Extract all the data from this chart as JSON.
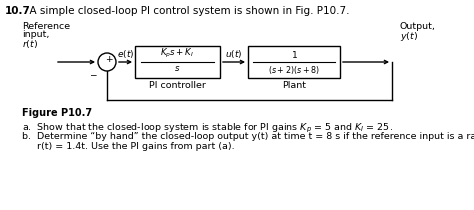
{
  "title_num": "10.7",
  "title_text": "  A simple closed-loop PI control system is shown in Fig. P10.7.",
  "fig_label": "Figure P10.7",
  "part_a": "a.  Show that the closed-loop system is stable for PI gains $K_p$ = 5 and $K_I$ = 25.",
  "part_b_line1": "b.  Determine “by hand” the closed-loop output y(t) at time t = 8 s if the reference input is a ramp function",
  "part_b_line2": "     r(t) = 1.4t. Use the PI gains from part (a).",
  "bg_color": "#ffffff",
  "line_color": "#000000",
  "text_color": "#000000"
}
